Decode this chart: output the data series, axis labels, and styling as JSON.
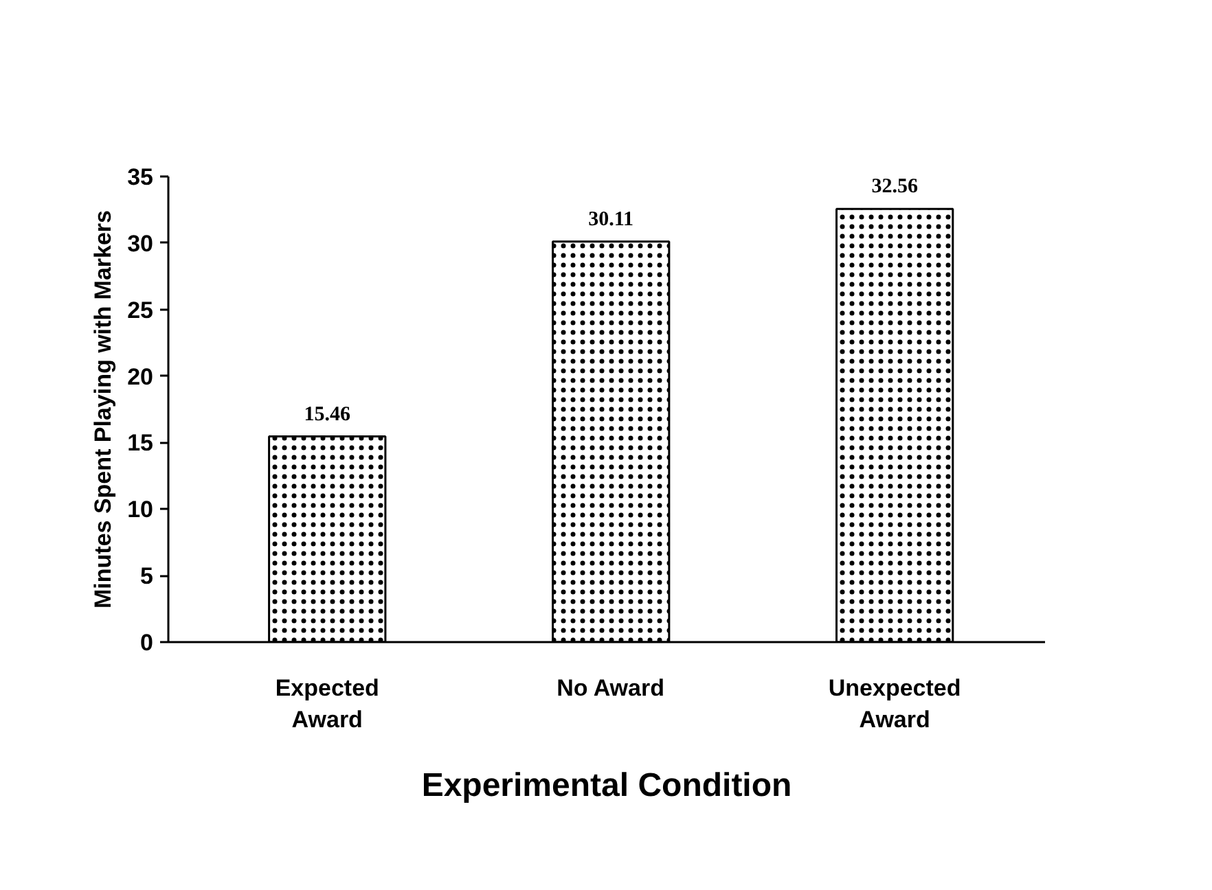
{
  "chart_data": {
    "type": "bar",
    "xlabel": "Experimental Condition",
    "ylabel": "Minutes Spent Playing with Markers",
    "categories": [
      "Expected\nAward",
      "No Award",
      "Unexpected\nAward"
    ],
    "values": [
      15.46,
      30.11,
      32.56
    ],
    "color": "#ffffff",
    "ylim": [
      0,
      35
    ],
    "yticks": [
      0,
      5,
      10,
      15,
      20,
      25,
      30,
      35
    ],
    "data_labels": true,
    "grid": false
  }
}
